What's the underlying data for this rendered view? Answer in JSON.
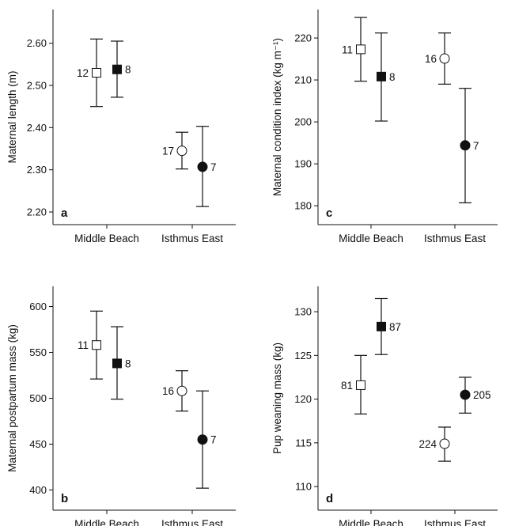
{
  "chart_data": [
    {
      "type": "scatter",
      "panel": "a",
      "ylabel": "Maternal length (m)",
      "categories": [
        "Middle Beach",
        "Isthmus East"
      ],
      "yticks": [
        "2.20",
        "2.30",
        "2.40",
        "2.50",
        "2.60"
      ],
      "ylim": [
        2.17,
        2.68
      ],
      "points": [
        {
          "category": "Middle Beach",
          "slot": "left",
          "marker": "open-square",
          "y": 2.53,
          "low": 2.45,
          "high": 2.61,
          "n": "12",
          "label_side": "left"
        },
        {
          "category": "Middle Beach",
          "slot": "right",
          "marker": "filled-square",
          "y": 2.538,
          "low": 2.472,
          "high": 2.605,
          "n": "8",
          "label_side": "right"
        },
        {
          "category": "Isthmus East",
          "slot": "left",
          "marker": "open-circle",
          "y": 2.345,
          "low": 2.302,
          "high": 2.389,
          "n": "17",
          "label_side": "left"
        },
        {
          "category": "Isthmus East",
          "slot": "right",
          "marker": "filled-circle",
          "y": 2.307,
          "low": 2.213,
          "high": 2.403,
          "n": "7",
          "label_side": "right"
        }
      ]
    },
    {
      "type": "scatter",
      "panel": "b",
      "ylabel": "Maternal postpartum mass (kg)",
      "categories": [
        "Middle Beach",
        "Isthmus East"
      ],
      "yticks": [
        "400",
        "450",
        "500",
        "550",
        "600"
      ],
      "ylim": [
        378,
        622
      ],
      "points": [
        {
          "category": "Middle Beach",
          "slot": "left",
          "marker": "open-square",
          "y": 558,
          "low": 521,
          "high": 595,
          "n": "11",
          "label_side": "left"
        },
        {
          "category": "Middle Beach",
          "slot": "right",
          "marker": "filled-square",
          "y": 538,
          "low": 499,
          "high": 578,
          "n": "8",
          "label_side": "right"
        },
        {
          "category": "Isthmus East",
          "slot": "left",
          "marker": "open-circle",
          "y": 508,
          "low": 486,
          "high": 530,
          "n": "16",
          "label_side": "left"
        },
        {
          "category": "Isthmus East",
          "slot": "right",
          "marker": "filled-circle",
          "y": 455,
          "low": 402,
          "high": 508,
          "n": "7",
          "label_side": "right"
        }
      ]
    },
    {
      "type": "scatter",
      "panel": "c",
      "ylabel": "Maternal condition index (kg m⁻¹)",
      "categories": [
        "Middle Beach",
        "Isthmus East"
      ],
      "yticks": [
        "180",
        "190",
        "200",
        "210",
        "220"
      ],
      "ylim": [
        175.5,
        226.8
      ],
      "points": [
        {
          "category": "Middle Beach",
          "slot": "left",
          "marker": "open-square",
          "y": 217.3,
          "low": 209.7,
          "high": 224.9,
          "n": "11",
          "label_side": "left"
        },
        {
          "category": "Middle Beach",
          "slot": "right",
          "marker": "filled-square",
          "y": 210.8,
          "low": 200.2,
          "high": 221.2,
          "n": "8",
          "label_side": "right"
        },
        {
          "category": "Isthmus East",
          "slot": "left",
          "marker": "open-circle",
          "y": 215.1,
          "low": 209.0,
          "high": 221.2,
          "n": "16",
          "label_side": "left"
        },
        {
          "category": "Isthmus East",
          "slot": "right",
          "marker": "filled-circle",
          "y": 194.4,
          "low": 180.7,
          "high": 208.0,
          "n": "7",
          "label_side": "right"
        }
      ]
    },
    {
      "type": "scatter",
      "panel": "d",
      "ylabel": "Pup weaning mass (kg)",
      "categories": [
        "Middle Beach",
        "Isthmus East"
      ],
      "yticks": [
        "110",
        "115",
        "120",
        "125",
        "130"
      ],
      "ylim": [
        107.3,
        132.9
      ],
      "points": [
        {
          "category": "Middle Beach",
          "slot": "left",
          "marker": "open-square",
          "y": 121.6,
          "low": 118.3,
          "high": 125.0,
          "n": "81",
          "label_side": "left"
        },
        {
          "category": "Middle Beach",
          "slot": "right",
          "marker": "filled-square",
          "y": 128.3,
          "low": 125.1,
          "high": 131.5,
          "n": "87",
          "label_side": "right"
        },
        {
          "category": "Isthmus East",
          "slot": "left",
          "marker": "open-circle",
          "y": 114.9,
          "low": 112.9,
          "high": 116.8,
          "n": "224",
          "label_side": "left"
        },
        {
          "category": "Isthmus East",
          "slot": "right",
          "marker": "filled-circle",
          "y": 120.5,
          "low": 118.4,
          "high": 122.5,
          "n": "205",
          "label_side": "right"
        }
      ]
    }
  ]
}
